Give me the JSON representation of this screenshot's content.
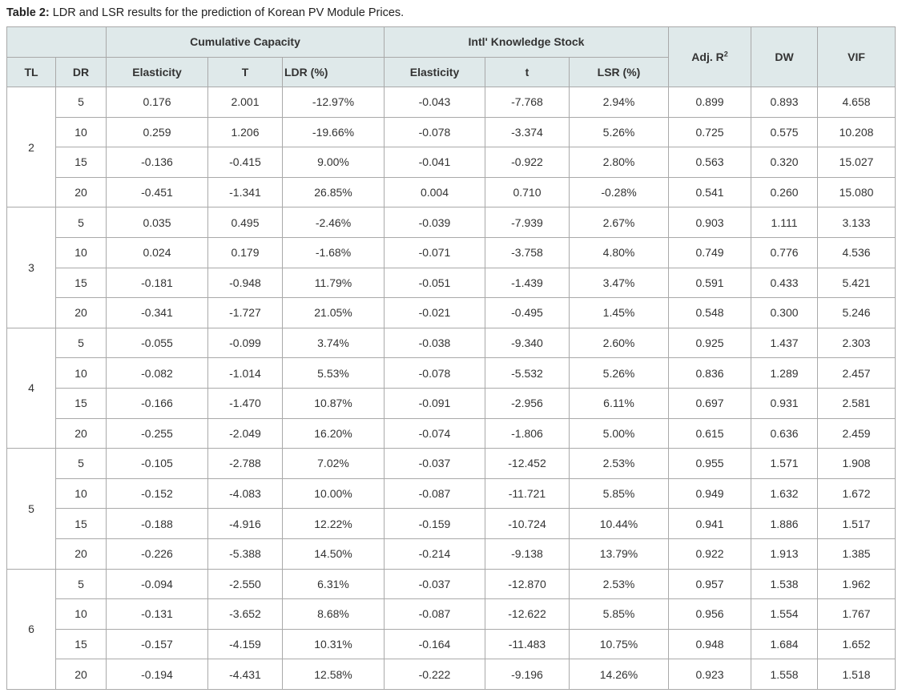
{
  "caption": {
    "label": "Table 2:",
    "text": " LDR and LSR results for the prediction of Korean PV Module Prices."
  },
  "header": {
    "group_cumulative": "Cumulative Capacity",
    "group_knowledge": "Intl' Knowledge Stock",
    "adj_r_base": "Adj. R",
    "adj_r_sup": "2",
    "dw": "DW",
    "vif": "VIF",
    "tl": "TL",
    "dr": "DR",
    "cc_elasticity": "Elasticity",
    "cc_t": "T",
    "cc_ldr": "LDR (%)",
    "ks_elasticity": "Elasticity",
    "ks_t": "t",
    "ks_lsr": "LSR (%)"
  },
  "groups": [
    {
      "tl": "2",
      "rows": [
        {
          "dr": "5",
          "cc_e": "0.176",
          "cc_t": "2.001",
          "ldr": "-12.97%",
          "ks_e": "-0.043",
          "ks_t": "-7.768",
          "lsr": "2.94%",
          "adj": "0.899",
          "dw": "0.893",
          "vif": "4.658"
        },
        {
          "dr": "10",
          "cc_e": "0.259",
          "cc_t": "1.206",
          "ldr": "-19.66%",
          "ks_e": "-0.078",
          "ks_t": "-3.374",
          "lsr": "5.26%",
          "adj": "0.725",
          "dw": "0.575",
          "vif": "10.208"
        },
        {
          "dr": "15",
          "cc_e": "-0.136",
          "cc_t": "-0.415",
          "ldr": "9.00%",
          "ks_e": "-0.041",
          "ks_t": "-0.922",
          "lsr": "2.80%",
          "adj": "0.563",
          "dw": "0.320",
          "vif": "15.027"
        },
        {
          "dr": "20",
          "cc_e": "-0.451",
          "cc_t": "-1.341",
          "ldr": "26.85%",
          "ks_e": "0.004",
          "ks_t": "0.710",
          "lsr": "-0.28%",
          "adj": "0.541",
          "dw": "0.260",
          "vif": "15.080"
        }
      ]
    },
    {
      "tl": "3",
      "rows": [
        {
          "dr": "5",
          "cc_e": "0.035",
          "cc_t": "0.495",
          "ldr": "-2.46%",
          "ks_e": "-0.039",
          "ks_t": "-7.939",
          "lsr": "2.67%",
          "adj": "0.903",
          "dw": "1.111",
          "vif": "3.133"
        },
        {
          "dr": "10",
          "cc_e": "0.024",
          "cc_t": "0.179",
          "ldr": "-1.68%",
          "ks_e": "-0.071",
          "ks_t": "-3.758",
          "lsr": "4.80%",
          "adj": "0.749",
          "dw": "0.776",
          "vif": "4.536"
        },
        {
          "dr": "15",
          "cc_e": "-0.181",
          "cc_t": "-0.948",
          "ldr": "11.79%",
          "ks_e": "-0.051",
          "ks_t": "-1.439",
          "lsr": "3.47%",
          "adj": "0.591",
          "dw": "0.433",
          "vif": "5.421"
        },
        {
          "dr": "20",
          "cc_e": "-0.341",
          "cc_t": "-1.727",
          "ldr": "21.05%",
          "ks_e": "-0.021",
          "ks_t": "-0.495",
          "lsr": "1.45%",
          "adj": "0.548",
          "dw": "0.300",
          "vif": "5.246"
        }
      ]
    },
    {
      "tl": "4",
      "rows": [
        {
          "dr": "5",
          "cc_e": "-0.055",
          "cc_t": "-0.099",
          "ldr": "3.74%",
          "ks_e": "-0.038",
          "ks_t": "-9.340",
          "lsr": "2.60%",
          "adj": "0.925",
          "dw": "1.437",
          "vif": "2.303"
        },
        {
          "dr": "10",
          "cc_e": "-0.082",
          "cc_t": "-1.014",
          "ldr": "5.53%",
          "ks_e": "-0.078",
          "ks_t": "-5.532",
          "lsr": "5.26%",
          "adj": "0.836",
          "dw": "1.289",
          "vif": "2.457"
        },
        {
          "dr": "15",
          "cc_e": "-0.166",
          "cc_t": "-1.470",
          "ldr": "10.87%",
          "ks_e": "-0.091",
          "ks_t": "-2.956",
          "lsr": "6.11%",
          "adj": "0.697",
          "dw": "0.931",
          "vif": "2.581"
        },
        {
          "dr": "20",
          "cc_e": "-0.255",
          "cc_t": "-2.049",
          "ldr": "16.20%",
          "ks_e": "-0.074",
          "ks_t": "-1.806",
          "lsr": "5.00%",
          "adj": "0.615",
          "dw": "0.636",
          "vif": "2.459"
        }
      ]
    },
    {
      "tl": "5",
      "rows": [
        {
          "dr": "5",
          "cc_e": "-0.105",
          "cc_t": "-2.788",
          "ldr": "7.02%",
          "ks_e": "-0.037",
          "ks_t": "-12.452",
          "lsr": "2.53%",
          "adj": "0.955",
          "dw": "1.571",
          "vif": "1.908"
        },
        {
          "dr": "10",
          "cc_e": "-0.152",
          "cc_t": "-4.083",
          "ldr": "10.00%",
          "ks_e": "-0.087",
          "ks_t": "-11.721",
          "lsr": "5.85%",
          "adj": "0.949",
          "dw": "1.632",
          "vif": "1.672"
        },
        {
          "dr": "15",
          "cc_e": "-0.188",
          "cc_t": "-4.916",
          "ldr": "12.22%",
          "ks_e": "-0.159",
          "ks_t": "-10.724",
          "lsr": "10.44%",
          "adj": "0.941",
          "dw": "1.886",
          "vif": "1.517"
        },
        {
          "dr": "20",
          "cc_e": "-0.226",
          "cc_t": "-5.388",
          "ldr": "14.50%",
          "ks_e": "-0.214",
          "ks_t": "-9.138",
          "lsr": "13.79%",
          "adj": "0.922",
          "dw": "1.913",
          "vif": "1.385"
        }
      ]
    },
    {
      "tl": "6",
      "rows": [
        {
          "dr": "5",
          "cc_e": "-0.094",
          "cc_t": "-2.550",
          "ldr": "6.31%",
          "ks_e": "-0.037",
          "ks_t": "-12.870",
          "lsr": "2.53%",
          "adj": "0.957",
          "dw": "1.538",
          "vif": "1.962"
        },
        {
          "dr": "10",
          "cc_e": "-0.131",
          "cc_t": "-3.652",
          "ldr": "8.68%",
          "ks_e": "-0.087",
          "ks_t": "-12.622",
          "lsr": "5.85%",
          "adj": "0.956",
          "dw": "1.554",
          "vif": "1.767"
        },
        {
          "dr": "15",
          "cc_e": "-0.157",
          "cc_t": "-4.159",
          "ldr": "10.31%",
          "ks_e": "-0.164",
          "ks_t": "-11.483",
          "lsr": "10.75%",
          "adj": "0.948",
          "dw": "1.684",
          "vif": "1.652"
        },
        {
          "dr": "20",
          "cc_e": "-0.194",
          "cc_t": "-4.431",
          "ldr": "12.58%",
          "ks_e": "-0.222",
          "ks_t": "-9.196",
          "lsr": "14.26%",
          "adj": "0.923",
          "dw": "1.558",
          "vif": "1.518"
        }
      ]
    }
  ]
}
